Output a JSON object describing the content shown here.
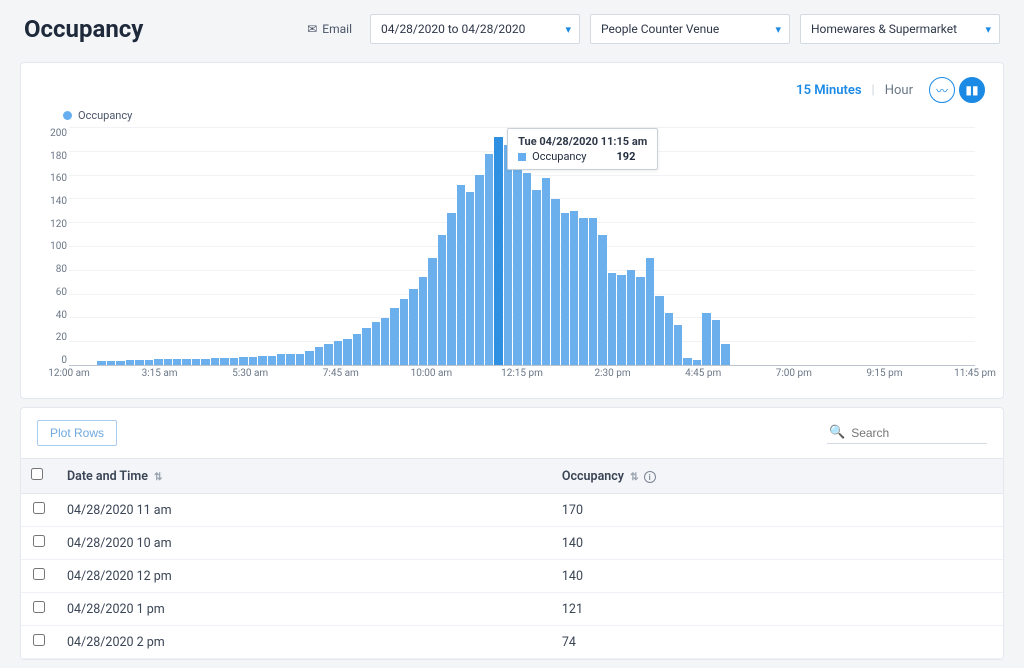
{
  "page": {
    "title": "Occupancy",
    "email_label": "Email",
    "date_range": "04/28/2020 to 04/28/2020",
    "venue": "People Counter Venue",
    "zone": "Homewares & Supermarket"
  },
  "chart": {
    "intervals": {
      "active": "15 Minutes",
      "inactive": "Hour"
    },
    "legend": "Occupancy",
    "type": "bar",
    "bar_color": "#6bb0ec",
    "highlight_color": "#2f8fe0",
    "grid_color": "#f0f2f5",
    "background_color": "#ffffff",
    "ylim": [
      0,
      200
    ],
    "ytick_step": 20,
    "x_labels": [
      "12:00 am",
      "3:15 am",
      "5:30 am",
      "7:45 am",
      "10:00 am",
      "12:15 pm",
      "2:30 pm",
      "4:45 pm",
      "7:00 pm",
      "9:15 pm",
      "11:45 pm"
    ],
    "highlight_index": 45,
    "values": [
      0,
      0,
      0,
      3,
      3,
      3,
      4,
      4,
      4,
      5,
      5,
      5,
      5,
      5,
      5,
      6,
      6,
      6,
      7,
      7,
      8,
      8,
      9,
      9,
      9,
      12,
      15,
      18,
      20,
      22,
      26,
      31,
      36,
      40,
      48,
      56,
      64,
      74,
      90,
      110,
      128,
      152,
      146,
      160,
      178,
      192,
      186,
      170,
      162,
      148,
      158,
      140,
      128,
      130,
      124,
      124,
      110,
      78,
      76,
      80,
      74,
      90,
      58,
      44,
      34,
      6,
      4,
      44,
      38,
      18,
      0,
      0,
      0,
      0,
      0,
      0,
      0,
      0,
      0,
      0,
      0,
      0,
      0,
      0,
      0,
      0,
      0,
      0,
      0,
      0,
      0,
      0,
      0,
      0,
      0,
      0
    ],
    "tooltip": {
      "title": "Tue 04/28/2020 11:15 am",
      "series": "Occupancy",
      "value": "192"
    }
  },
  "table": {
    "plot_rows_label": "Plot Rows",
    "search_placeholder": "Search",
    "columns": {
      "datetime": "Date and Time",
      "occupancy": "Occupancy"
    },
    "rows": [
      {
        "datetime": "04/28/2020 11 am",
        "occupancy": "170"
      },
      {
        "datetime": "04/28/2020 10 am",
        "occupancy": "140"
      },
      {
        "datetime": "04/28/2020 12 pm",
        "occupancy": "140"
      },
      {
        "datetime": "04/28/2020 1 pm",
        "occupancy": "121"
      },
      {
        "datetime": "04/28/2020 2 pm",
        "occupancy": "74"
      }
    ]
  }
}
